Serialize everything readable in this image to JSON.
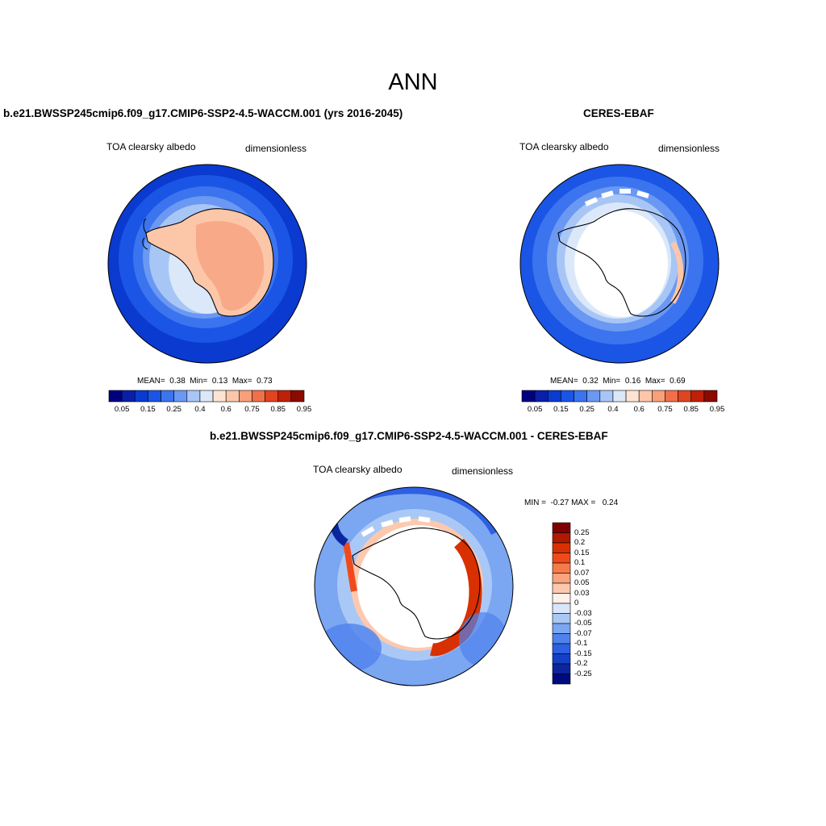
{
  "main_title": "ANN",
  "panels": [
    {
      "title": "b.e21.BWSSP245cmip6.f09_g17.CMIP6-SSP2-4.5-WACCM.001 (yrs 2016-2045)",
      "left_label": "TOA clearsky albedo",
      "right_label": "dimensionless",
      "stats": "MEAN=  0.38  Min=  0.13  Max=  0.73",
      "colorbar_ticks": [
        "0.05",
        "0.15",
        "0.25",
        "0.4",
        "0.6",
        "0.75",
        "0.85",
        "0.95"
      ]
    },
    {
      "title": "CERES-EBAF",
      "left_label": "TOA clearsky albedo",
      "right_label": "dimensionless",
      "stats": "MEAN=  0.32  Min=  0.16  Max=  0.69",
      "colorbar_ticks": [
        "0.05",
        "0.15",
        "0.25",
        "0.4",
        "0.6",
        "0.75",
        "0.85",
        "0.95"
      ]
    },
    {
      "title": "b.e21.BWSSP245cmip6.f09_g17.CMIP6-SSP2-4.5-WACCM.001 - CERES-EBAF",
      "left_label": "TOA clearsky albedo",
      "right_label": "dimensionless",
      "stats": "MIN =  -0.27 MAX =   0.24",
      "colorbar_ticks": [
        "0.25",
        "0.2",
        "0.15",
        "0.1",
        "0.07",
        "0.05",
        "0.03",
        "0",
        "-0.03",
        "-0.05",
        "-0.07",
        "-0.1",
        "-0.15",
        "-0.2",
        "-0.25"
      ]
    }
  ],
  "colors": {
    "albedo_scale": [
      "#00007f",
      "#0a1fa8",
      "#0a3ad0",
      "#1a55e6",
      "#3b74ee",
      "#6a98f2",
      "#a8c6f5",
      "#dbe8fa",
      "#fde4d2",
      "#fcc6a9",
      "#f8a07a",
      "#f1704a",
      "#e04420",
      "#bf2008",
      "#8c0a00"
    ],
    "diff_scale": [
      "#7f0000",
      "#b01800",
      "#d83000",
      "#f04a1c",
      "#f77a4a",
      "#fba27e",
      "#fdc9ae",
      "#fef0e8",
      "#d8e6fb",
      "#aac8f6",
      "#7aa6f2",
      "#4f82ec",
      "#2d60e2",
      "#1440c8",
      "#0a259e",
      "#000a80"
    ],
    "antarctica_fill": "#fcc6a9",
    "antarctica_interior": "#f8a988",
    "ocean_dark": "#0a3ad0"
  }
}
